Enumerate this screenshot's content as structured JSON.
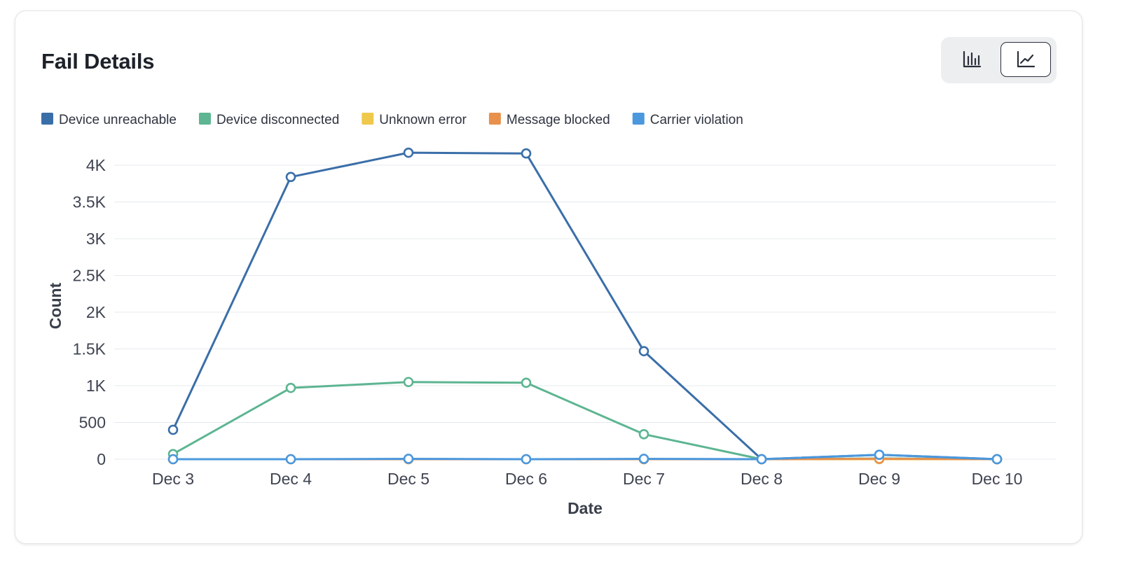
{
  "card": {
    "title": "Fail Details"
  },
  "view_toggle": {
    "options": [
      {
        "icon": "bar-chart-icon",
        "selected": false
      },
      {
        "icon": "line-chart-icon",
        "selected": true
      }
    ]
  },
  "chart_data": {
    "type": "line",
    "xlabel": "Date",
    "ylabel": "Count",
    "categories": [
      "Dec 3",
      "Dec 4",
      "Dec 5",
      "Dec 6",
      "Dec 7",
      "Dec 8",
      "Dec 9",
      "Dec 10"
    ],
    "ylim": [
      0,
      4000
    ],
    "yticks": [
      {
        "value": 0,
        "label": "0"
      },
      {
        "value": 500,
        "label": "500"
      },
      {
        "value": 1000,
        "label": "1K"
      },
      {
        "value": 1500,
        "label": "1.5K"
      },
      {
        "value": 2000,
        "label": "2K"
      },
      {
        "value": 2500,
        "label": "2.5K"
      },
      {
        "value": 3000,
        "label": "3K"
      },
      {
        "value": 3500,
        "label": "3.5K"
      },
      {
        "value": 4000,
        "label": "4K"
      }
    ],
    "grid": true,
    "legend_position": "top-left",
    "series": [
      {
        "name": "Device unreachable",
        "color": "#3a6ea8",
        "values": [
          400,
          3840,
          4170,
          4160,
          1470,
          0,
          60,
          0
        ]
      },
      {
        "name": "Device disconnected",
        "color": "#5db592",
        "values": [
          70,
          970,
          1050,
          1040,
          340,
          0,
          10,
          0
        ]
      },
      {
        "name": "Unknown error",
        "color": "#efc94c",
        "values": [
          0,
          0,
          0,
          0,
          0,
          0,
          0,
          0
        ]
      },
      {
        "name": "Message blocked",
        "color": "#e8914d",
        "values": [
          0,
          0,
          0,
          0,
          0,
          0,
          5,
          0
        ]
      },
      {
        "name": "Carrier violation",
        "color": "#4b98de",
        "values": [
          0,
          0,
          5,
          0,
          5,
          0,
          60,
          0
        ]
      }
    ]
  }
}
